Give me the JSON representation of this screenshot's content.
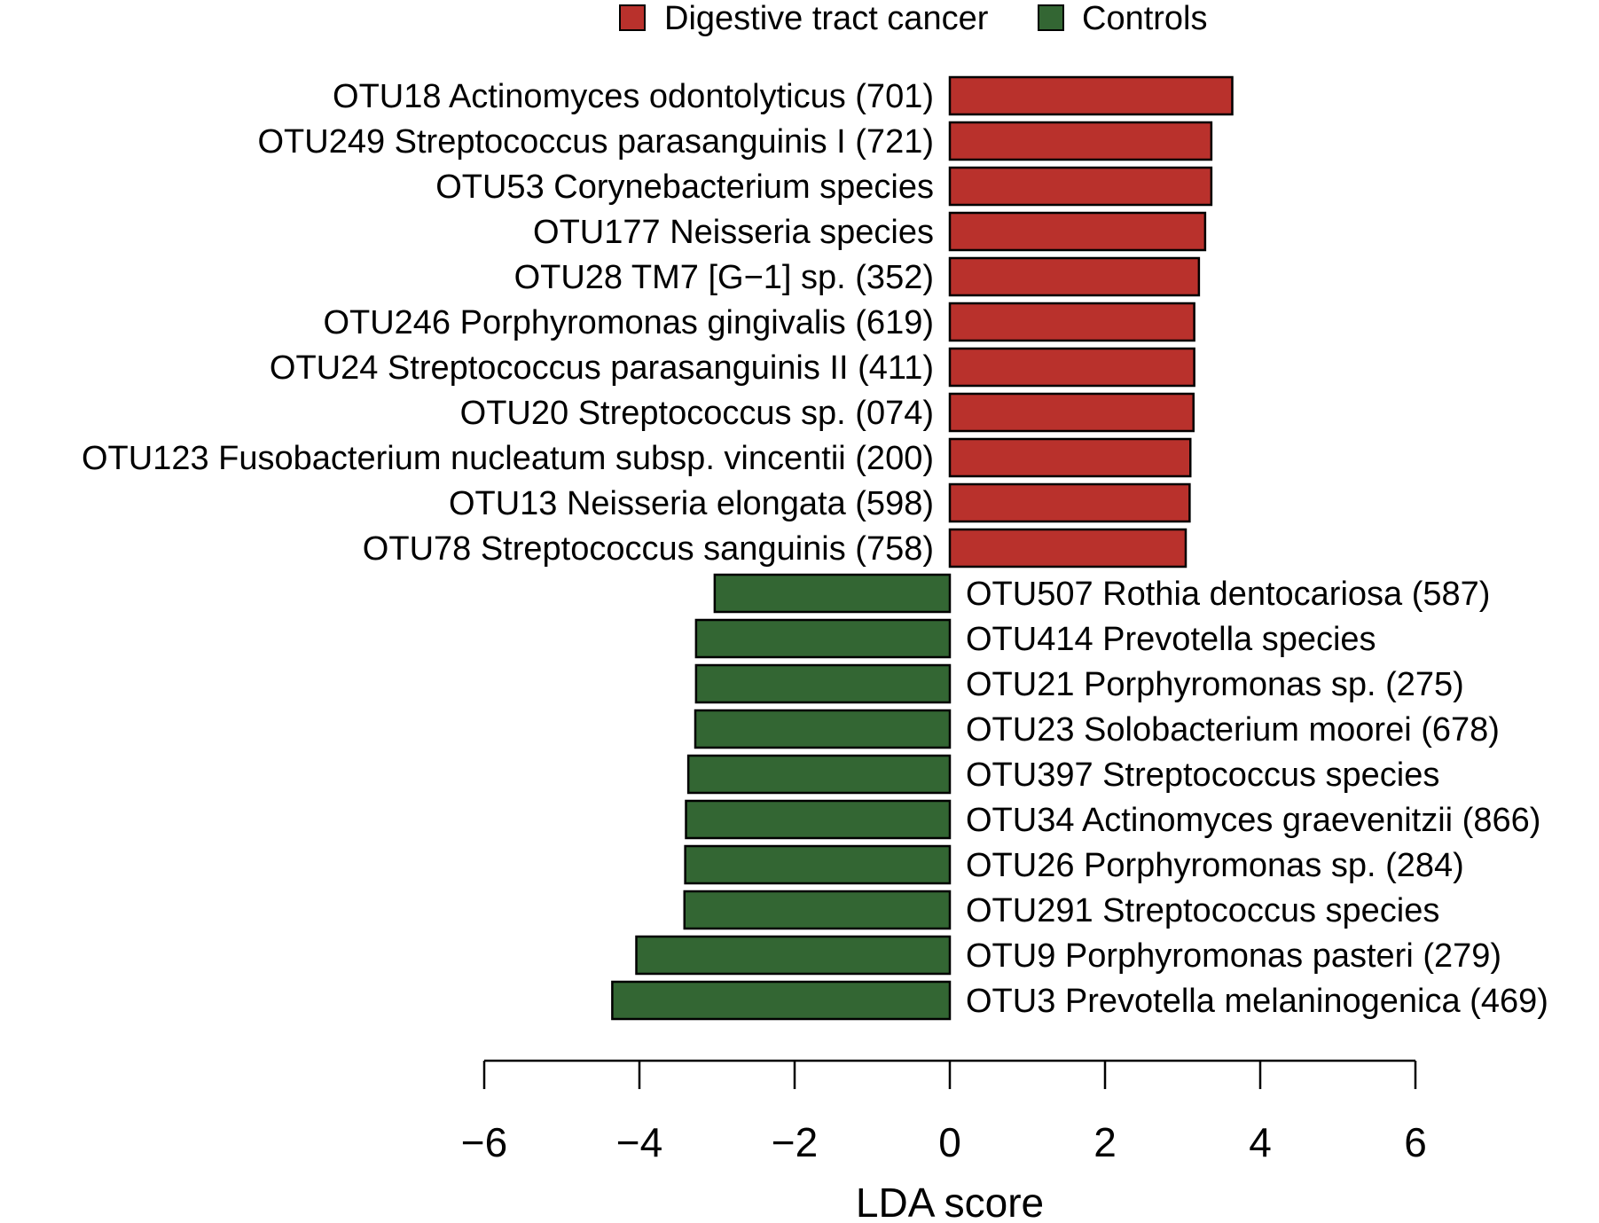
{
  "chart_data": {
    "type": "bar",
    "orientation": "horizontal",
    "title": "",
    "xlabel": "LDA score",
    "ylabel": "",
    "xlim": [
      -6,
      6
    ],
    "xticks": [
      -6,
      -4,
      -2,
      0,
      2,
      4,
      6
    ],
    "xtick_labels": [
      "−6",
      "−4",
      "−2",
      "0",
      "2",
      "4",
      "6"
    ],
    "legend": {
      "placement": "top-center",
      "entries": [
        {
          "name": "Digestive tract cancer",
          "color": "#b9312c"
        },
        {
          "name": "Controls",
          "color": "#336633"
        }
      ]
    },
    "series": [
      {
        "name": "Digestive tract cancer",
        "color": "#b9312c",
        "categories": [
          "OTU18 Actinomyces odontolyticus (701)",
          "OTU249 Streptococcus parasanguinis I (721)",
          "OTU53 Corynebacterium species",
          "OTU177 Neisseria species",
          "OTU28 TM7 [G−1] sp. (352)",
          "OTU246 Porphyromonas gingivalis (619)",
          "OTU24 Streptococcus parasanguinis II (411)",
          "OTU20 Streptococcus sp. (074)",
          "OTU123 Fusobacterium nucleatum subsp. vincentii (200)",
          "OTU13 Neisseria elongata (598)",
          "OTU78 Streptococcus sanguinis (758)"
        ],
        "values": [
          3.64,
          3.37,
          3.37,
          3.29,
          3.21,
          3.15,
          3.15,
          3.14,
          3.1,
          3.09,
          3.04
        ]
      },
      {
        "name": "Controls",
        "color": "#336633",
        "categories": [
          "OTU507 Rothia dentocariosa (587)",
          "OTU414 Prevotella species",
          "OTU21 Porphyromonas sp. (275)",
          "OTU23 Solobacterium moorei (678)",
          "OTU397 Streptococcus species",
          "OTU34 Actinomyces graevenitzii (866)",
          "OTU26 Porphyromonas sp. (284)",
          "OTU291 Streptococcus species",
          "OTU9 Porphyromonas pasteri (279)",
          "OTU3 Prevotella melaninogenica (469)"
        ],
        "values": [
          -3.03,
          -3.27,
          -3.27,
          -3.28,
          -3.37,
          -3.4,
          -3.41,
          -3.42,
          -4.04,
          -4.35
        ]
      }
    ]
  }
}
